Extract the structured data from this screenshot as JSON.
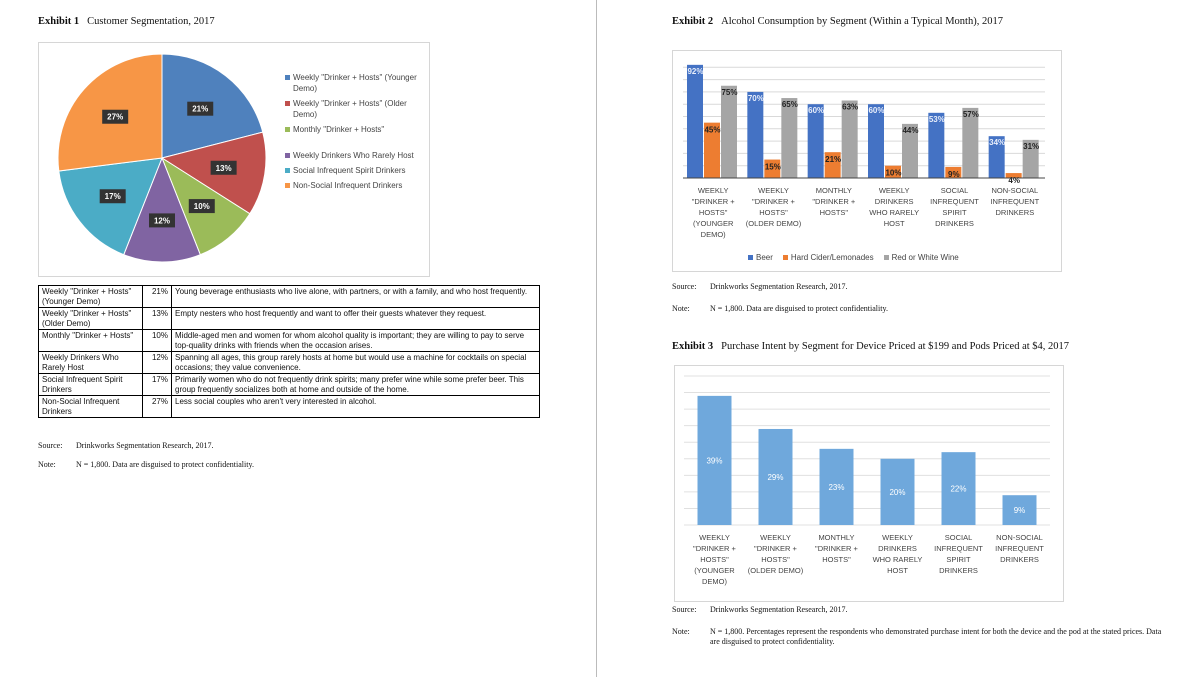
{
  "exhibit1": {
    "label": "Exhibit 1",
    "title": "Customer Segmentation, 2017",
    "chart_data": {
      "type": "pie",
      "labels": [
        "Weekly \"Drinker + Hosts\" (Younger Demo)",
        "Weekly \"Drinker + Hosts\" (Older Demo)",
        "Monthly \"Drinker + Hosts\"",
        "Weekly Drinkers Who Rarely Host",
        "Social Infrequent Spirit Drinkers",
        "Non-Social Infrequent Drinkers"
      ],
      "values": [
        21,
        13,
        10,
        12,
        17,
        27
      ],
      "data_labels": [
        "21%",
        "13%",
        "10%",
        "12%",
        "17%",
        "27%"
      ],
      "colors": [
        "#4f81bd",
        "#c0504d",
        "#9bbb59",
        "#8064a2",
        "#4bacc6",
        "#f79646"
      ],
      "legend_position": "right"
    },
    "table": [
      {
        "segment": "Weekly \"Drinker + Hosts\" (Younger Demo)",
        "pct": "21%",
        "description": "Young beverage enthusiasts who live alone, with partners, or with a family, and who host frequently."
      },
      {
        "segment": "Weekly \"Drinker + Hosts\" (Older Demo)",
        "pct": "13%",
        "description": "Empty nesters who host frequently and want to offer their guests whatever they request."
      },
      {
        "segment": "Monthly \"Drinker + Hosts\"",
        "pct": "10%",
        "description": "Middle-aged men and women for whom alcohol quality is important; they are willing to pay to serve top-quality drinks with friends when the occasion arises."
      },
      {
        "segment": "Weekly Drinkers Who Rarely Host",
        "pct": "12%",
        "description": "Spanning all ages, this group rarely hosts at home but would use a machine for cocktails on special occasions; they value convenience."
      },
      {
        "segment": "Social Infrequent Spirit Drinkers",
        "pct": "17%",
        "description": "Primarily women who do not frequently drink spirits; many prefer wine while some prefer beer. This group frequently socializes both at home and outside of the home."
      },
      {
        "segment": "Non-Social Infrequent Drinkers",
        "pct": "27%",
        "description": "Less social couples who aren't very interested in alcohol."
      }
    ],
    "source_label": "Source:",
    "source": "Drinkworks Segmentation Research, 2017.",
    "note_label": "Note:",
    "note": "N = 1,800. Data are disguised to protect confidentiality."
  },
  "exhibit2": {
    "label": "Exhibit 2",
    "title": "Alcohol Consumption by Segment (Within a Typical Month), 2017",
    "chart_data": {
      "type": "bar",
      "categories": [
        [
          "WEEKLY",
          "\"DRINKER +",
          "HOSTS\"",
          "(YOUNGER",
          "DEMO)"
        ],
        [
          "WEEKLY",
          "\"DRINKER +",
          "HOSTS\"",
          "(OLDER DEMO)"
        ],
        [
          "MONTHLY",
          "\"DRINKER +",
          "HOSTS\""
        ],
        [
          "WEEKLY",
          "DRINKERS",
          "WHO RARELY",
          "HOST"
        ],
        [
          "SOCIAL",
          "INFREQUENT",
          "SPIRIT",
          "DRINKERS"
        ],
        [
          "NON-SOCIAL",
          "INFREQUENT",
          "DRINKERS"
        ]
      ],
      "series": [
        {
          "name": "Beer",
          "color": "#4472c4",
          "values": [
            92,
            70,
            60,
            60,
            53,
            34
          ]
        },
        {
          "name": "Hard Cider/Lemonades",
          "color": "#ed7d31",
          "values": [
            45,
            15,
            21,
            10,
            9,
            4
          ]
        },
        {
          "name": "Red or White Wine",
          "color": "#a5a5a5",
          "values": [
            75,
            65,
            63,
            44,
            57,
            31
          ]
        }
      ],
      "ylim": [
        0,
        100
      ],
      "grid": true,
      "legend_position": "bottom"
    },
    "source_label": "Source:",
    "source": "Drinkworks Segmentation Research, 2017.",
    "note_label": "Note:",
    "note": "N = 1,800. Data are disguised to protect confidentiality."
  },
  "exhibit3": {
    "label": "Exhibit 3",
    "title": "Purchase Intent by Segment for Device Priced at $199 and Pods Priced at $4, 2017",
    "chart_data": {
      "type": "bar",
      "categories": [
        [
          "WEEKLY",
          "\"DRINKER +",
          "HOSTS\"",
          "(YOUNGER",
          "DEMO)"
        ],
        [
          "WEEKLY",
          "\"DRINKER +",
          "HOSTS\"",
          "(OLDER DEMO)"
        ],
        [
          "MONTHLY",
          "\"DRINKER +",
          "HOSTS\""
        ],
        [
          "WEEKLY",
          "DRINKERS",
          "WHO RARELY",
          "HOST"
        ],
        [
          "SOCIAL",
          "INFREQUENT",
          "SPIRIT",
          "DRINKERS"
        ],
        [
          "NON-SOCIAL",
          "INFREQUENT",
          "DRINKERS"
        ]
      ],
      "values": [
        39,
        29,
        23,
        20,
        22,
        9
      ],
      "color": "#6fa8dc",
      "ylim": [
        0,
        45
      ],
      "grid": true
    },
    "source_label": "Source:",
    "source": "Drinkworks Segmentation Research, 2017.",
    "note_label": "Note:",
    "note": "N = 1,800. Percentages represent the respondents who demonstrated purchase intent for both the device and the pod at the stated prices. Data are disguised to protect confidentiality."
  }
}
